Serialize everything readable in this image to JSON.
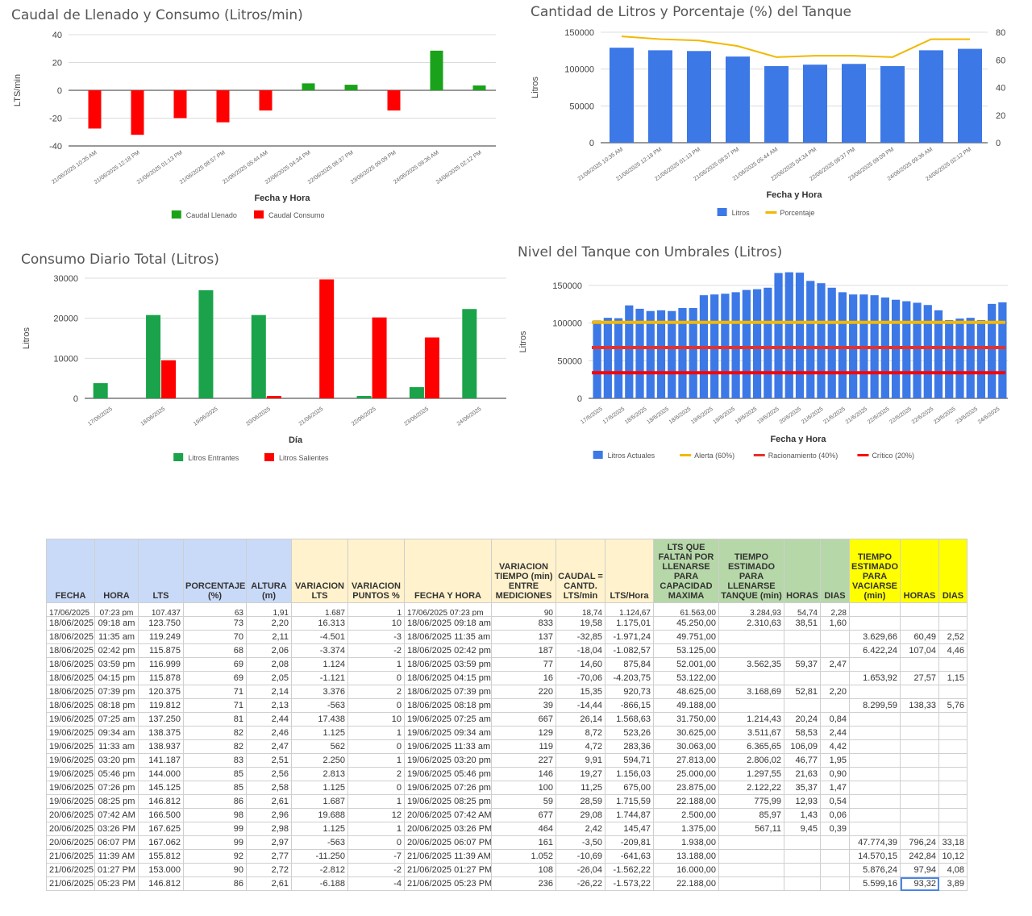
{
  "charts": [
    {
      "id": "c1",
      "type": "bar",
      "title": "Caudal de Llenado y Consumo (Litros/min)",
      "xlabel": "Fecha y Hora",
      "ylabel": "LTS/min",
      "ylim": [
        -40,
        40
      ],
      "yticks": [
        "40",
        "20",
        "0",
        "-20",
        "-40"
      ],
      "categories": [
        "21/06/2025 10:35 AM",
        "21/06/2025 12:18 PM",
        "21/06/2025 01:13 PM",
        "21/06/2025 08:57 PM",
        "21/06/2025 05:44 AM",
        "22/06/2025 04:34 PM",
        "22/06/2025 08:37 PM",
        "23/06/2025 09:09 PM",
        "24/06/2025 09:36 AM",
        "24/06/2025 02:12 PM"
      ],
      "series": [
        {
          "name": "Caudal Llenado",
          "color": "#1aa31a",
          "values": [
            null,
            null,
            null,
            null,
            null,
            5,
            4,
            null,
            28.5,
            3.5
          ]
        },
        {
          "name": "Caudal Consumo",
          "color": "#ff0000",
          "values": [
            -27.5,
            -32,
            -20,
            -23,
            -14.5,
            null,
            null,
            -14.5,
            null,
            null
          ]
        }
      ]
    },
    {
      "id": "c2",
      "type": "bar",
      "title": "Cantidad de Litros y Porcentaje (%) del Tanque",
      "xlabel": "Fecha y Hora",
      "ylabel": "Litros",
      "ylim": [
        0,
        150000
      ],
      "y2lim": [
        0,
        80
      ],
      "yticks": [
        "150000",
        "100000",
        "50000",
        "0"
      ],
      "y2ticks": [
        "80",
        "60",
        "40",
        "20",
        "0"
      ],
      "categories": [
        "21/06/2025 10:35 AM",
        "21/06/2025 12:18 PM",
        "21/06/2025 01:13 PM",
        "21/06/2025 08:57 PM",
        "21/06/2025 05:44 AM",
        "22/06/2025 04:34 PM",
        "22/06/2025 08:37 PM",
        "23/06/2025 09:09 PM",
        "24/06/2025 09:36 AM",
        "24/06/2025 02:12 PM"
      ],
      "series": [
        {
          "name": "Litros",
          "color": "#3c78e6",
          "values": [
            129000,
            125500,
            124500,
            117000,
            104000,
            106000,
            107000,
            104000,
            125500,
            127500
          ]
        },
        {
          "name": "Porcentaje",
          "color": "#f2b800",
          "values": [
            77,
            75,
            74,
            70,
            62,
            63,
            63,
            62,
            75,
            75
          ]
        }
      ]
    },
    {
      "id": "c3",
      "type": "bar",
      "title": "Consumo Diario Total (Litros)",
      "xlabel": "Día",
      "ylabel": "Litros",
      "ylim": [
        0,
        30000
      ],
      "yticks": [
        "30000",
        "20000",
        "10000",
        "0"
      ],
      "categories": [
        "17/06/2025",
        "18/06/2025",
        "19/06/2025",
        "20/06/2025",
        "21/06/2025",
        "22/06/2025",
        "23/06/2025",
        "24/06/2025"
      ],
      "series": [
        {
          "name": "Litros Entrantes",
          "color": "#1aa34a",
          "values": [
            3800,
            20800,
            27000,
            20800,
            0,
            600,
            2800,
            22300
          ]
        },
        {
          "name": "Litros Salientes",
          "color": "#ff0000",
          "values": [
            0,
            9500,
            0,
            600,
            29700,
            20200,
            15200,
            0
          ]
        }
      ]
    },
    {
      "id": "c4",
      "type": "bar",
      "title": "Nivel del Tanque con Umbrales (Litros)",
      "xlabel": "Fecha y Hora",
      "ylabel": "Litros",
      "ylim": [
        0,
        150000
      ],
      "yticks": [
        "150000",
        "100000",
        "50000",
        "0"
      ],
      "categories": [
        "17/6/2025",
        "17/6/2025",
        "18/6/2025",
        "18/6/2025",
        "18/6/2025",
        "19/6/2025",
        "19/6/2025",
        "19/6/2025",
        "19/6/2025",
        "20/6/2025",
        "21/6/2025",
        "21/6/2025",
        "21/6/2025",
        "22/6/2025",
        "22/6/2025",
        "22/6/2025",
        "23/6/2025",
        "23/6/2025",
        "24/6/2025"
      ],
      "series": [
        {
          "name": "Litros Actuales",
          "color": "#3c78e6",
          "values": [
            103500,
            107000,
            106500,
            123500,
            119000,
            116000,
            117000,
            116000,
            120000,
            120000,
            137000,
            138000,
            139000,
            141000,
            144000,
            145000,
            147000,
            166500,
            167500,
            167000,
            156000,
            153000,
            147000,
            141000,
            138000,
            138000,
            137000,
            134000,
            131000,
            129000,
            127000,
            124000,
            117000,
            104000,
            106000,
            107000,
            104000,
            125500,
            127500
          ]
        },
        {
          "name": "Alerta (60%)",
          "color": "#f2b800",
          "threshold": 101000
        },
        {
          "name": "Racionamiento (40%)",
          "color": "#e8302a",
          "threshold": 67500
        },
        {
          "name": "Crítico (20%)",
          "color": "#ff0000",
          "threshold": 34000
        }
      ]
    }
  ],
  "table": {
    "headers": [
      "FECHA",
      "HORA",
      "LTS",
      "PORCENTAJE (%)",
      "ALTURA (m)",
      "VARIACION LTS",
      "VARIACION PUNTOS %",
      "FECHA Y HORA",
      "VARIACION TIEMPO (min) ENTRE MEDICIONES",
      "CAUDAL = CANTD. LTS/min",
      "LTS/Hora",
      "LTS QUE FALTAN POR LLENARSE PARA CAPACIDAD MAXIMA",
      "TIEMPO ESTIMADO PARA LLENARSE TANQUE (min)",
      "HORAS",
      "DIAS",
      "TIEMPO ESTIMADO PARA VACIARSE (min)",
      "HORAS",
      "DIAS"
    ],
    "partial_row": [
      "17/06/2025",
      "07:23 pm",
      "107.437",
      "63",
      "1,91",
      "1.687",
      "1",
      "17/06/2025 07:23 pm",
      "90",
      "18,74",
      "1.124,67",
      "61.563,00",
      "3.284,93",
      "54,74",
      "2,28",
      "",
      "",
      ""
    ],
    "rows": [
      [
        "18/06/2025",
        "09:18 am",
        "123.750",
        "73",
        "2,20",
        "16.313",
        "10",
        "18/06/2025 09:18 am",
        "833",
        "19,58",
        "1.175,01",
        "45.250,00",
        "2.310,63",
        "38,51",
        "1,60",
        "",
        "",
        ""
      ],
      [
        "18/06/2025",
        "11:35 am",
        "119.249",
        "70",
        "2,11",
        "-4.501",
        "-3",
        "18/06/2025 11:35 am",
        "137",
        "-32,85",
        "-1.971,24",
        "49.751,00",
        "",
        "",
        "",
        "3.629,66",
        "60,49",
        "2,52"
      ],
      [
        "18/06/2025",
        "02:42 pm",
        "115.875",
        "68",
        "2,06",
        "-3.374",
        "-2",
        "18/06/2025 02:42 pm",
        "187",
        "-18,04",
        "-1.082,57",
        "53.125,00",
        "",
        "",
        "",
        "6.422,24",
        "107,04",
        "4,46"
      ],
      [
        "18/06/2025",
        "03:59 pm",
        "116.999",
        "69",
        "2,08",
        "1.124",
        "1",
        "18/06/2025 03:59 pm",
        "77",
        "14,60",
        "875,84",
        "52.001,00",
        "3.562,35",
        "59,37",
        "2,47",
        "",
        "",
        ""
      ],
      [
        "18/06/2025",
        "04:15 pm",
        "115.878",
        "69",
        "2,05",
        "-1.121",
        "0",
        "18/06/2025 04:15 pm",
        "16",
        "-70,06",
        "-4.203,75",
        "53.122,00",
        "",
        "",
        "",
        "1.653,92",
        "27,57",
        "1,15"
      ],
      [
        "18/06/2025",
        "07:39 pm",
        "120.375",
        "71",
        "2,14",
        "3.376",
        "2",
        "18/06/2025 07:39 pm",
        "220",
        "15,35",
        "920,73",
        "48.625,00",
        "3.168,69",
        "52,81",
        "2,20",
        "",
        "",
        ""
      ],
      [
        "18/06/2025",
        "08:18 pm",
        "119.812",
        "71",
        "2,13",
        "-563",
        "0",
        "18/06/2025 08:18 pm",
        "39",
        "-14,44",
        "-866,15",
        "49.188,00",
        "",
        "",
        "",
        "8.299,59",
        "138,33",
        "5,76"
      ],
      [
        "19/06/2025",
        "07:25 am",
        "137.250",
        "81",
        "2,44",
        "17.438",
        "10",
        "19/06/2025 07:25 am",
        "667",
        "26,14",
        "1.568,63",
        "31.750,00",
        "1.214,43",
        "20,24",
        "0,84",
        "",
        "",
        ""
      ],
      [
        "19/06/2025",
        "09:34 am",
        "138.375",
        "82",
        "2,46",
        "1.125",
        "1",
        "19/06/2025 09:34 am",
        "129",
        "8,72",
        "523,26",
        "30.625,00",
        "3.511,67",
        "58,53",
        "2,44",
        "",
        "",
        ""
      ],
      [
        "19/06/2025",
        "11:33 am",
        "138.937",
        "82",
        "2,47",
        "562",
        "0",
        "19/06/2025 11:33 am",
        "119",
        "4,72",
        "283,36",
        "30.063,00",
        "6.365,65",
        "106,09",
        "4,42",
        "",
        "",
        ""
      ],
      [
        "19/06/2025",
        "03:20 pm",
        "141.187",
        "83",
        "2,51",
        "2.250",
        "1",
        "19/06/2025 03:20 pm",
        "227",
        "9,91",
        "594,71",
        "27.813,00",
        "2.806,02",
        "46,77",
        "1,95",
        "",
        "",
        ""
      ],
      [
        "19/06/2025",
        "05:46 pm",
        "144.000",
        "85",
        "2,56",
        "2.813",
        "2",
        "19/06/2025 05:46 pm",
        "146",
        "19,27",
        "1.156,03",
        "25.000,00",
        "1.297,55",
        "21,63",
        "0,90",
        "",
        "",
        ""
      ],
      [
        "19/06/2025",
        "07:26 pm",
        "145.125",
        "85",
        "2,58",
        "1.125",
        "0",
        "19/06/2025 07:26 pm",
        "100",
        "11,25",
        "675,00",
        "23.875,00",
        "2.122,22",
        "35,37",
        "1,47",
        "",
        "",
        ""
      ],
      [
        "19/06/2025",
        "08:25 pm",
        "146.812",
        "86",
        "2,61",
        "1.687",
        "1",
        "19/06/2025 08:25 pm",
        "59",
        "28,59",
        "1.715,59",
        "22.188,00",
        "775,99",
        "12,93",
        "0,54",
        "",
        "",
        ""
      ],
      [
        "20/06/2025",
        "07:42 AM",
        "166.500",
        "98",
        "2,96",
        "19.688",
        "12",
        "20/06/2025 07:42 AM",
        "677",
        "29,08",
        "1.744,87",
        "2.500,00",
        "85,97",
        "1,43",
        "0,06",
        "",
        "",
        ""
      ],
      [
        "20/06/2025",
        "03:26 PM",
        "167.625",
        "99",
        "2,98",
        "1.125",
        "1",
        "20/06/2025 03:26 PM",
        "464",
        "2,42",
        "145,47",
        "1.375,00",
        "567,11",
        "9,45",
        "0,39",
        "",
        "",
        ""
      ],
      [
        "20/06/2025",
        "06:07 PM",
        "167.062",
        "99",
        "2,97",
        "-563",
        "0",
        "20/06/2025 06:07 PM",
        "161",
        "-3,50",
        "-209,81",
        "1.938,00",
        "",
        "",
        "",
        "47.774,39",
        "796,24",
        "33,18"
      ],
      [
        "21/06/2025",
        "11:39 AM",
        "155.812",
        "92",
        "2,77",
        "-11.250",
        "-7",
        "21/06/2025 11:39 AM",
        "1.052",
        "-10,69",
        "-641,63",
        "13.188,00",
        "",
        "",
        "",
        "14.570,15",
        "242,84",
        "10,12"
      ],
      [
        "21/06/2025",
        "01:27 PM",
        "153.000",
        "90",
        "2,72",
        "-2.812",
        "-2",
        "21/06/2025 01:27 PM",
        "108",
        "-26,04",
        "-1.562,22",
        "16.000,00",
        "",
        "",
        "",
        "5.876,24",
        "97,94",
        "4,08"
      ],
      [
        "21/06/2025",
        "05:23 PM",
        "146.812",
        "86",
        "2,61",
        "-6.188",
        "-4",
        "21/06/2025 05:23 PM",
        "236",
        "-26,22",
        "-1.573,22",
        "22.188,00",
        "",
        "",
        "",
        "5.599,16",
        "93,32",
        "3,89"
      ]
    ]
  }
}
